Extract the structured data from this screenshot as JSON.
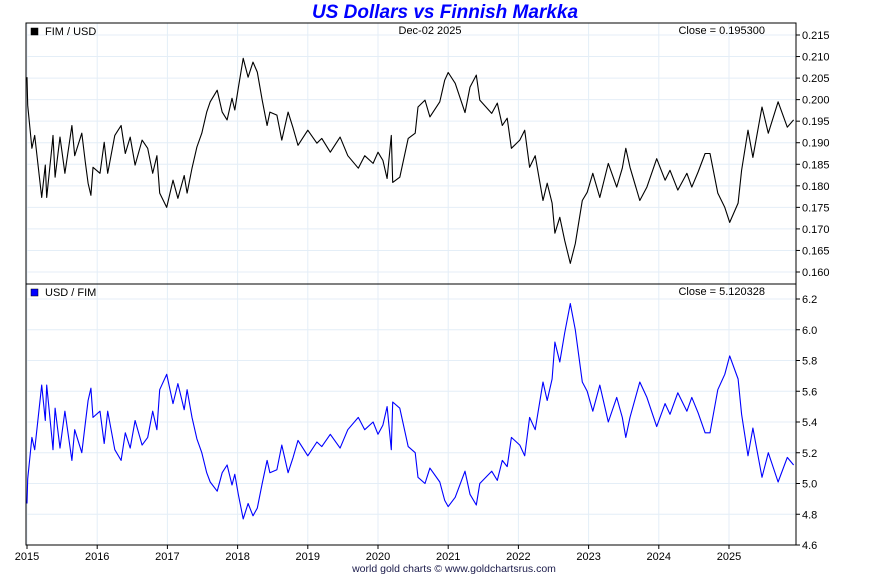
{
  "page": {
    "title": "US Dollars vs Finnish Markka",
    "footer": "world gold charts © www.goldchartsrus.com"
  },
  "colors": {
    "title": "#0000ff",
    "fim_usd": "#000000",
    "usd_fim": "#0000ff",
    "grid": "#e4eef7"
  },
  "chart_data": [
    {
      "type": "line",
      "panel": "top",
      "legend": "FIM / USD",
      "date_label": "Dec-02  2025",
      "close_label": "Close = 0.195300",
      "ylim": [
        0.16,
        0.215
      ],
      "yticks": [
        "0.215",
        "0.210",
        "0.205",
        "0.200",
        "0.195",
        "0.190",
        "0.185",
        "0.180",
        "0.175",
        "0.170",
        "0.165",
        "0.160"
      ],
      "xlim": [
        2015.0,
        2025.95
      ],
      "xticks": [
        "2015",
        "2016",
        "2017",
        "2018",
        "2019",
        "2020",
        "2021",
        "2022",
        "2023",
        "2024",
        "2025"
      ],
      "grid": true,
      "legend_placement": "top-left",
      "x": [
        2015.0,
        2015.01,
        2015.07,
        2015.11,
        2015.21,
        2015.26,
        2015.28,
        2015.36,
        2015.37,
        2015.4,
        2015.47,
        2015.54,
        2015.64,
        2015.68,
        2015.78,
        2015.83,
        2015.87,
        2015.91,
        2015.94,
        2016.04,
        2016.1,
        2016.15,
        2016.25,
        2016.34,
        2016.4,
        2016.47,
        2016.54,
        2016.64,
        2016.72,
        2016.79,
        2016.85,
        2016.89,
        2016.99,
        2017.08,
        2017.15,
        2017.24,
        2017.28,
        2017.35,
        2017.42,
        2017.49,
        2017.56,
        2017.61,
        2017.71,
        2017.78,
        2017.85,
        2017.92,
        2017.96,
        2018.01,
        2018.08,
        2018.15,
        2018.22,
        2018.28,
        2018.35,
        2018.42,
        2018.46,
        2018.56,
        2018.63,
        2018.72,
        2018.79,
        2018.86,
        2019.0,
        2019.13,
        2019.2,
        2019.32,
        2019.46,
        2019.57,
        2019.72,
        2019.81,
        2019.93,
        2020.0,
        2020.07,
        2020.13,
        2020.19,
        2020.21,
        2020.31,
        2020.43,
        2020.53,
        2020.57,
        2020.67,
        2020.74,
        2020.88,
        2020.95,
        2021.0,
        2021.1,
        2021.24,
        2021.31,
        2021.4,
        2021.45,
        2021.62,
        2021.7,
        2021.77,
        2021.84,
        2021.9,
        2022.02,
        2022.09,
        2022.16,
        2022.24,
        2022.35,
        2022.41,
        2022.48,
        2022.52,
        2022.59,
        2022.66,
        2022.74,
        2022.81,
        2022.91,
        2022.98,
        2023.06,
        2023.16,
        2023.28,
        2023.4,
        2023.48,
        2023.53,
        2023.59,
        2023.73,
        2023.83,
        2023.97,
        2024.09,
        2024.16,
        2024.27,
        2024.4,
        2024.47,
        2024.56,
        2024.66,
        2024.73,
        2024.84,
        2024.94,
        2025.01,
        2025.13,
        2025.18,
        2025.27,
        2025.34,
        2025.47,
        2025.56,
        2025.7,
        2025.83,
        2025.92
      ],
      "values": [
        0.2052,
        0.1987,
        0.1887,
        0.1917,
        0.1773,
        0.1848,
        0.1773,
        0.1899,
        0.1917,
        0.182,
        0.1913,
        0.1829,
        0.194,
        0.187,
        0.1922,
        0.1855,
        0.1806,
        0.1778,
        0.1843,
        0.1829,
        0.1901,
        0.1829,
        0.1917,
        0.194,
        0.1875,
        0.1913,
        0.1848,
        0.1906,
        0.1887,
        0.1829,
        0.187,
        0.1783,
        0.175,
        0.1813,
        0.1771,
        0.1824,
        0.1783,
        0.1841,
        0.189,
        0.1922,
        0.1971,
        0.1995,
        0.2022,
        0.1971,
        0.1953,
        0.2003,
        0.1976,
        0.2027,
        0.2096,
        0.2052,
        0.2087,
        0.2064,
        0.1999,
        0.194,
        0.1971,
        0.1964,
        0.1906,
        0.1971,
        0.1934,
        0.1894,
        0.1929,
        0.1899,
        0.191,
        0.1878,
        0.1913,
        0.187,
        0.1841,
        0.187,
        0.1852,
        0.1878,
        0.1859,
        0.1817,
        0.1917,
        0.1808,
        0.182,
        0.191,
        0.1922,
        0.1983,
        0.1999,
        0.196,
        0.1995,
        0.2045,
        0.2063,
        0.2038,
        0.197,
        0.2029,
        0.2057,
        0.1999,
        0.1968,
        0.1992,
        0.194,
        0.1957,
        0.1887,
        0.1906,
        0.1929,
        0.1843,
        0.187,
        0.1766,
        0.1806,
        0.176,
        0.169,
        0.1727,
        0.1673,
        0.162,
        0.1666,
        0.1766,
        0.1785,
        0.1829,
        0.1773,
        0.1852,
        0.1797,
        0.1841,
        0.1887,
        0.1843,
        0.1766,
        0.1797,
        0.1863,
        0.1813,
        0.1836,
        0.179,
        0.1829,
        0.1797,
        0.1832,
        0.1875,
        0.1875,
        0.1783,
        0.175,
        0.1715,
        0.176,
        0.1836,
        0.1929,
        0.1866,
        0.1983,
        0.1922,
        0.1995,
        0.1936,
        0.1953
      ]
    },
    {
      "type": "line",
      "panel": "bottom",
      "legend": "USD / FIM",
      "close_label": "Close = 5.120328",
      "ylim": [
        4.6,
        6.2
      ],
      "yticks": [
        "6.2",
        "6.0",
        "5.8",
        "5.6",
        "5.4",
        "5.2",
        "5.0",
        "4.8",
        "4.6"
      ],
      "xlim": [
        2015.0,
        2025.95
      ],
      "grid": true,
      "legend_placement": "top-left",
      "values": [
        4.87,
        5.03,
        5.3,
        5.22,
        5.64,
        5.41,
        5.64,
        5.27,
        5.22,
        5.49,
        5.23,
        5.47,
        5.15,
        5.35,
        5.2,
        5.39,
        5.54,
        5.62,
        5.43,
        5.47,
        5.26,
        5.47,
        5.22,
        5.15,
        5.33,
        5.23,
        5.41,
        5.25,
        5.3,
        5.47,
        5.35,
        5.61,
        5.71,
        5.52,
        5.65,
        5.48,
        5.61,
        5.43,
        5.29,
        5.2,
        5.07,
        5.01,
        4.95,
        5.07,
        5.12,
        4.99,
        5.06,
        4.93,
        4.77,
        4.87,
        4.79,
        4.84,
        5.0,
        5.15,
        5.07,
        5.09,
        5.25,
        5.07,
        5.17,
        5.28,
        5.18,
        5.27,
        5.24,
        5.32,
        5.23,
        5.35,
        5.43,
        5.35,
        5.4,
        5.32,
        5.38,
        5.5,
        5.22,
        5.53,
        5.49,
        5.24,
        5.2,
        5.04,
        5.0,
        5.1,
        5.01,
        4.89,
        4.85,
        4.91,
        5.08,
        4.93,
        4.86,
        5.0,
        5.08,
        5.02,
        5.15,
        5.11,
        5.3,
        5.25,
        5.18,
        5.43,
        5.35,
        5.66,
        5.54,
        5.68,
        5.92,
        5.79,
        5.98,
        6.17,
        6.0,
        5.66,
        5.6,
        5.47,
        5.64,
        5.4,
        5.56,
        5.43,
        5.3,
        5.43,
        5.66,
        5.56,
        5.37,
        5.52,
        5.45,
        5.59,
        5.47,
        5.56,
        5.46,
        5.33,
        5.33,
        5.61,
        5.71,
        5.83,
        5.68,
        5.45,
        5.18,
        5.36,
        5.04,
        5.2,
        5.01,
        5.17,
        5.12
      ]
    }
  ]
}
